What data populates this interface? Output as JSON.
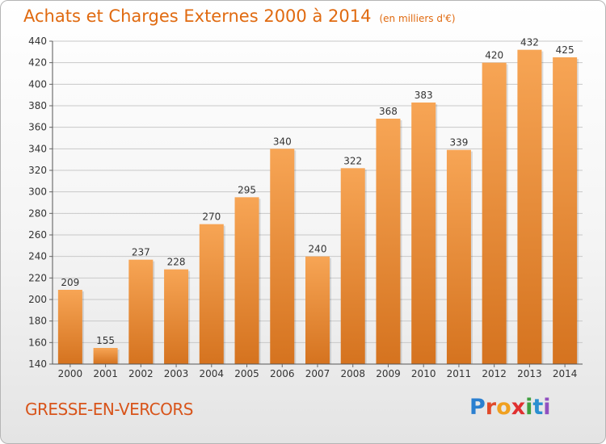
{
  "title": "Achats et Charges Externes 2000 à 2014",
  "subtitle": "(en milliers d'€)",
  "place": "GRESSE-EN-VERCORS",
  "logo": {
    "letters": [
      {
        "ch": "P",
        "color": "#2a7fd0"
      },
      {
        "ch": "r",
        "color": "#e04a2a"
      },
      {
        "ch": "o",
        "color": "#f0a020"
      },
      {
        "ch": "x",
        "color": "#e03030"
      },
      {
        "ch": "i",
        "color": "#40a040"
      },
      {
        "ch": "t",
        "color": "#2a8fd0"
      },
      {
        "ch": "i",
        "color": "#9050c0"
      }
    ]
  },
  "colors": {
    "bar_light": "#f7a555",
    "bar_dark": "#d5731f",
    "grid": "#c8c8c8",
    "axis_text": "#333333"
  },
  "chart_data": {
    "type": "bar",
    "categories": [
      "2000",
      "2001",
      "2002",
      "2003",
      "2004",
      "2005",
      "2006",
      "2007",
      "2008",
      "2009",
      "2010",
      "2011",
      "2012",
      "2013",
      "2014"
    ],
    "values": [
      209,
      155,
      237,
      228,
      270,
      295,
      340,
      240,
      322,
      368,
      383,
      339,
      420,
      432,
      425
    ],
    "ylim": [
      140,
      440
    ],
    "yticks": [
      140,
      160,
      180,
      200,
      220,
      240,
      260,
      280,
      300,
      320,
      340,
      360,
      380,
      400,
      420,
      440
    ],
    "grid": true
  }
}
